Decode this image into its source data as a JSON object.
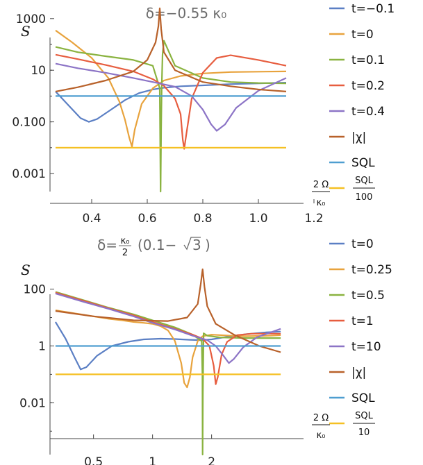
{
  "chart_data": [
    {
      "type": "line",
      "title": "δ=−0.55 κ₀",
      "ylabel": "S",
      "xlabel_numerator": "2 Ω",
      "xlabel_denominator": "κ₀",
      "xscale": "linear",
      "yscale": "log",
      "xlim": [
        0.25,
        1.1
      ],
      "ylim": [
        0.0002,
        2500
      ],
      "xticks": [
        0.4,
        0.6,
        0.8,
        1.0,
        1.2
      ],
      "xtick_labels": [
        "0.4",
        "0.6",
        "0.8",
        "1.0",
        "1.2"
      ],
      "yticks": [
        0.001,
        0.1,
        10,
        1000
      ],
      "ytick_labels": [
        "0.001",
        "0.100",
        "10",
        "1000"
      ],
      "series": [
        {
          "name": "t=−0.1",
          "color": "#5b7fc4",
          "x": [
            0.27,
            0.32,
            0.36,
            0.39,
            0.42,
            0.47,
            0.52,
            0.57,
            0.62,
            0.66,
            0.72,
            0.8,
            0.9,
            1.0,
            1.1
          ],
          "y": [
            1.5,
            0.4,
            0.14,
            0.1,
            0.13,
            0.3,
            0.7,
            1.3,
            1.8,
            2.1,
            2.4,
            2.6,
            2.9,
            3.1,
            3.3
          ]
        },
        {
          "name": "t=0",
          "color": "#e8a33d",
          "x": [
            0.27,
            0.33,
            0.4,
            0.46,
            0.5,
            0.52,
            0.535,
            0.545,
            0.555,
            0.58,
            0.62,
            0.66,
            0.72,
            0.8,
            0.9,
            1.0,
            1.1
          ],
          "y": [
            350,
            120,
            30,
            5,
            0.6,
            0.12,
            0.025,
            0.011,
            0.05,
            0.5,
            2,
            4,
            6,
            7.5,
            8.5,
            8.8,
            9
          ]
        },
        {
          "name": "t=0.1",
          "color": "#8ab340",
          "x": [
            0.27,
            0.35,
            0.45,
            0.55,
            0.62,
            0.645,
            0.648,
            0.65,
            0.652,
            0.655,
            0.66,
            0.7,
            0.8,
            0.9,
            1.0,
            1.1
          ],
          "y": [
            80,
            50,
            35,
            25,
            15,
            2,
            0.0002,
            0.05,
            2,
            40,
            140,
            15,
            5,
            3.5,
            3.2,
            3.1
          ]
        },
        {
          "name": "t=0.2",
          "color": "#e75d3f",
          "x": [
            0.27,
            0.35,
            0.45,
            0.55,
            0.62,
            0.66,
            0.7,
            0.72,
            0.728,
            0.733,
            0.74,
            0.76,
            0.8,
            0.85,
            0.9,
            1.0,
            1.1
          ],
          "y": [
            40,
            27,
            16,
            9,
            4.5,
            2.5,
            0.8,
            0.2,
            0.02,
            0.009,
            0.03,
            0.8,
            8,
            30,
            38,
            25,
            15
          ]
        },
        {
          "name": "t=0.4",
          "color": "#8c74c6",
          "x": [
            0.27,
            0.35,
            0.45,
            0.55,
            0.62,
            0.7,
            0.76,
            0.8,
            0.83,
            0.85,
            0.88,
            0.92,
            1.0,
            1.1
          ],
          "y": [
            18,
            12,
            8,
            5,
            3.5,
            2.3,
            1,
            0.3,
            0.08,
            0.045,
            0.08,
            0.35,
            1.6,
            5
          ]
        },
        {
          "name": "|χ|",
          "color": "#b8612a",
          "x": [
            0.27,
            0.35,
            0.45,
            0.55,
            0.6,
            0.63,
            0.64,
            0.645,
            0.65,
            0.66,
            0.7,
            0.8,
            0.9,
            1.0,
            1.1
          ],
          "y": [
            1.5,
            2.2,
            4,
            9,
            25,
            120,
            500,
            2500,
            400,
            50,
            10,
            3.5,
            2.4,
            1.8,
            1.5
          ]
        },
        {
          "name": "SQL",
          "color": "#4e9ed0",
          "x": [
            0.27,
            1.1
          ],
          "y": [
            1,
            1
          ]
        },
        {
          "name": "SQL/100",
          "legend_numerator": "SQL",
          "legend_denominator": "100",
          "color": "#f5c023",
          "x": [
            0.27,
            1.1
          ],
          "y": [
            0.01,
            0.01
          ]
        }
      ]
    },
    {
      "type": "line",
      "title": "δ=κ₀/2 (0.1−√3)",
      "title_lead": "δ=",
      "title_frac_numerator": "κ₀",
      "title_frac_denominator": "2",
      "title_paren_open": "(0.1−",
      "title_sqrt_arg": "3",
      "title_paren_close": ")",
      "ylabel": "S",
      "xlabel_numerator": "2 Ω",
      "xlabel_denominator": "κ₀",
      "xscale": "log",
      "yscale": "log",
      "xlim": [
        0.3,
        4.8
      ],
      "ylim": [
        0.00015,
        700
      ],
      "xticks": [
        0.5,
        1,
        2
      ],
      "xtick_labels": [
        "0.5",
        "1",
        "2"
      ],
      "yticks": [
        0.01,
        1,
        100
      ],
      "ytick_labels": [
        "0.01",
        "1",
        "100"
      ],
      "series": [
        {
          "name": "t=0",
          "color": "#5b7fc4",
          "x": [
            0.32,
            0.36,
            0.4,
            0.43,
            0.46,
            0.52,
            0.62,
            0.75,
            0.9,
            1.1,
            1.3,
            1.55,
            1.75,
            2.0,
            2.4,
            3.0,
            3.8,
            4.5
          ],
          "y": [
            7,
            1.8,
            0.4,
            0.15,
            0.18,
            0.45,
            1,
            1.4,
            1.7,
            1.8,
            1.75,
            1.65,
            1.6,
            1.7,
            2.1,
            2.6,
            3,
            3.2
          ]
        },
        {
          "name": "t=0.25",
          "color": "#e8a33d",
          "x": [
            0.32,
            0.4,
            0.5,
            0.6,
            0.7,
            0.8,
            0.9,
            1.0,
            1.1,
            1.2,
            1.3,
            1.4,
            1.45,
            1.5,
            1.55,
            1.6,
            1.7,
            1.8,
            2.0,
            2.5,
            3.0,
            4.0,
            4.5
          ],
          "y": [
            18,
            14,
            11,
            9,
            8,
            7,
            6.5,
            6,
            5,
            3.5,
            1.5,
            0.25,
            0.05,
            0.035,
            0.08,
            0.4,
            1.5,
            2.2,
            2.5,
            2.3,
            2.2,
            2.3,
            2.4
          ]
        },
        {
          "name": "t=0.5",
          "color": "#8ab340",
          "x": [
            0.32,
            0.45,
            0.6,
            0.8,
            1.0,
            1.3,
            1.6,
            1.78,
            1.795,
            1.8,
            1.805,
            1.82,
            1.9,
            2.2,
            3.0,
            4.5
          ],
          "y": [
            80,
            40,
            22,
            13,
            8,
            4.5,
            2.5,
            1.5,
            0.1,
            0.00015,
            0.02,
            2.8,
            2.3,
            2,
            1.9,
            1.9
          ]
        },
        {
          "name": "t=1",
          "color": "#e75d3f",
          "x": [
            0.32,
            0.45,
            0.6,
            0.8,
            1.0,
            1.3,
            1.6,
            1.8,
            1.95,
            2.05,
            2.1,
            2.15,
            2.25,
            2.4,
            2.7,
            3.2,
            4.5
          ],
          "y": [
            75,
            38,
            21,
            12,
            7,
            4,
            2.5,
            1.8,
            1,
            0.2,
            0.045,
            0.08,
            0.5,
            1.4,
            2.4,
            2.7,
            2.7
          ]
        },
        {
          "name": "t=10",
          "color": "#8c74c6",
          "x": [
            0.32,
            0.45,
            0.6,
            0.8,
            1.0,
            1.3,
            1.6,
            1.9,
            2.1,
            2.3,
            2.45,
            2.6,
            2.9,
            3.4,
            4.5
          ],
          "y": [
            70,
            35,
            20,
            11,
            6.5,
            3.8,
            2.3,
            1.6,
            1,
            0.45,
            0.25,
            0.35,
            0.9,
            2,
            4
          ]
        },
        {
          "name": "|χ|",
          "color": "#b8612a",
          "x": [
            0.32,
            0.5,
            0.8,
            1.2,
            1.5,
            1.7,
            1.76,
            1.8,
            1.84,
            1.9,
            2.1,
            2.6,
            3.5,
            4.5
          ],
          "y": [
            17,
            11,
            8,
            7.5,
            10,
            30,
            150,
            500,
            120,
            25,
            6,
            2.5,
            1,
            0.6
          ]
        },
        {
          "name": "SQL",
          "color": "#4e9ed0",
          "x": [
            0.32,
            4.5
          ],
          "y": [
            1,
            1
          ]
        },
        {
          "name": "SQL/10",
          "legend_numerator": "SQL",
          "legend_denominator": "10",
          "color": "#f5c023",
          "x": [
            0.32,
            4.5
          ],
          "y": [
            0.1,
            0.1
          ]
        }
      ]
    }
  ]
}
